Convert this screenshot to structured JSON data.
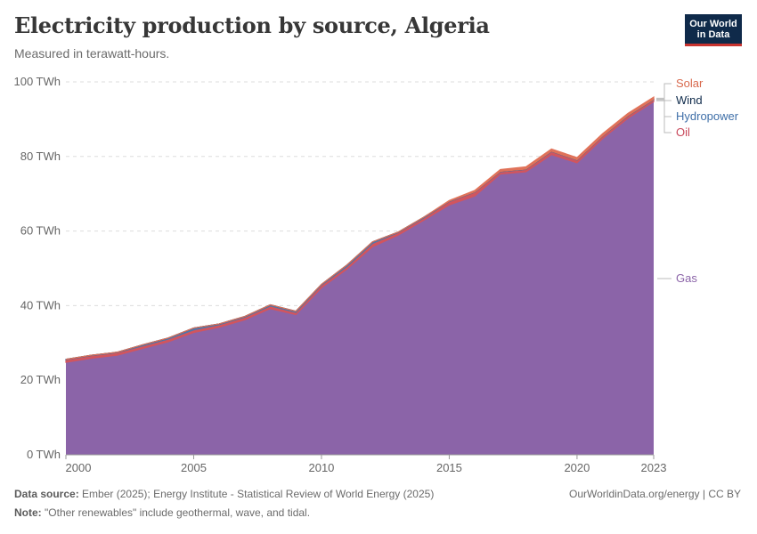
{
  "header": {
    "title": "Electricity production by source, Algeria",
    "subtitle": "Measured in terawatt-hours.",
    "logo_line1": "Our World",
    "logo_line2": "in Data"
  },
  "footer": {
    "source_label": "Data source:",
    "source_text": "Ember (2025); Energy Institute - Statistical Review of World Energy (2025)",
    "note_label": "Note:",
    "note_text": "\"Other renewables\" include geothermal, wave, and tidal.",
    "credit": "OurWorldinData.org/energy | CC BY"
  },
  "chart_data": {
    "type": "area",
    "stacked": true,
    "x": [
      2000,
      2001,
      2002,
      2003,
      2004,
      2005,
      2006,
      2007,
      2008,
      2009,
      2010,
      2011,
      2012,
      2013,
      2014,
      2015,
      2016,
      2017,
      2018,
      2019,
      2020,
      2021,
      2022,
      2023
    ],
    "y_ticks": [
      0,
      20,
      40,
      60,
      80,
      100
    ],
    "y_tick_labels": [
      "0 TWh",
      "20 TWh",
      "40 TWh",
      "60 TWh",
      "80 TWh",
      "100 TWh"
    ],
    "x_ticks": [
      2000,
      2005,
      2010,
      2015,
      2020,
      2023
    ],
    "x_tick_labels": [
      "2000",
      "2005",
      "2010",
      "2015",
      "2020",
      "2023"
    ],
    "ylim": [
      0,
      100
    ],
    "grid": true,
    "legend": "right-inline",
    "series": [
      {
        "name": "Gas",
        "color": "#8b64a8",
        "values": [
          24.8,
          25.9,
          26.7,
          28.5,
          30.3,
          32.8,
          34.2,
          36.2,
          39.2,
          37.6,
          44.8,
          49.8,
          55.8,
          58.9,
          62.9,
          67.0,
          69.4,
          75.3,
          75.9,
          80.5,
          78.3,
          84.8,
          90.3,
          94.7
        ]
      },
      {
        "name": "Oil",
        "color": "#d1555e",
        "values": [
          0.7,
          0.7,
          0.7,
          0.7,
          0.7,
          0.7,
          0.7,
          0.7,
          0.7,
          0.6,
          0.7,
          0.7,
          0.9,
          0.7,
          0.6,
          0.9,
          1.0,
          0.6,
          0.6,
          0.8,
          0.7,
          0.6,
          0.6,
          0.5
        ]
      },
      {
        "name": "Hydropower",
        "color": "#4d78ad",
        "values": [
          0.1,
          0.1,
          0.1,
          0.3,
          0.3,
          0.5,
          0.2,
          0.2,
          0.3,
          0.3,
          0.2,
          0.4,
          0.4,
          0.1,
          0.2,
          0.1,
          0.1,
          0.1,
          0.1,
          0.1,
          0.1,
          0.1,
          0.1,
          0.1
        ]
      },
      {
        "name": "Wind",
        "color": "#0e2a4a",
        "values": [
          0,
          0,
          0,
          0,
          0,
          0,
          0,
          0,
          0,
          0,
          0,
          0,
          0,
          0,
          0,
          0,
          0,
          0,
          0,
          0,
          0,
          0,
          0,
          0.01
        ]
      },
      {
        "name": "Solar",
        "color": "#e0735a",
        "values": [
          0,
          0,
          0,
          0,
          0,
          0,
          0,
          0,
          0,
          0,
          0,
          0,
          0,
          0,
          0,
          0.2,
          0.4,
          0.5,
          0.6,
          0.6,
          0.6,
          0.6,
          0.6,
          0.6
        ]
      }
    ]
  }
}
